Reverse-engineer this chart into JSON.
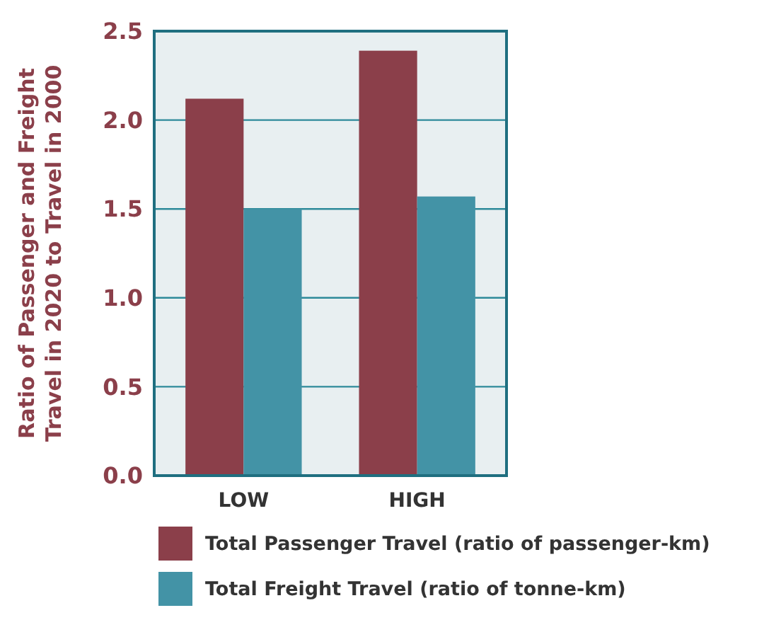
{
  "chart_data": {
    "type": "bar",
    "ylabel": "Ratio of Passenger and Freight Travel in 2020 to Travel in 2000",
    "categories": [
      "LOW",
      "HIGH"
    ],
    "series": [
      {
        "name": "Total Passenger Travel (ratio of passenger-km)",
        "color": "#8b3f4a",
        "values": [
          2.12,
          2.39
        ]
      },
      {
        "name": "Total Freight Travel (ratio of tonne-km)",
        "color": "#4393a6",
        "values": [
          1.5,
          1.57
        ]
      }
    ],
    "ylim": [
      0,
      2.5
    ],
    "yticks": [
      {
        "value": 0,
        "label": "0.0"
      },
      {
        "value": 0.5,
        "label": "0.5"
      },
      {
        "value": 1,
        "label": "1.0"
      },
      {
        "value": 1.5,
        "label": "1.5"
      },
      {
        "value": 2,
        "label": "2.0"
      },
      {
        "value": 2.5,
        "label": "2.5"
      }
    ],
    "grid": "y",
    "legend": "bottom"
  }
}
